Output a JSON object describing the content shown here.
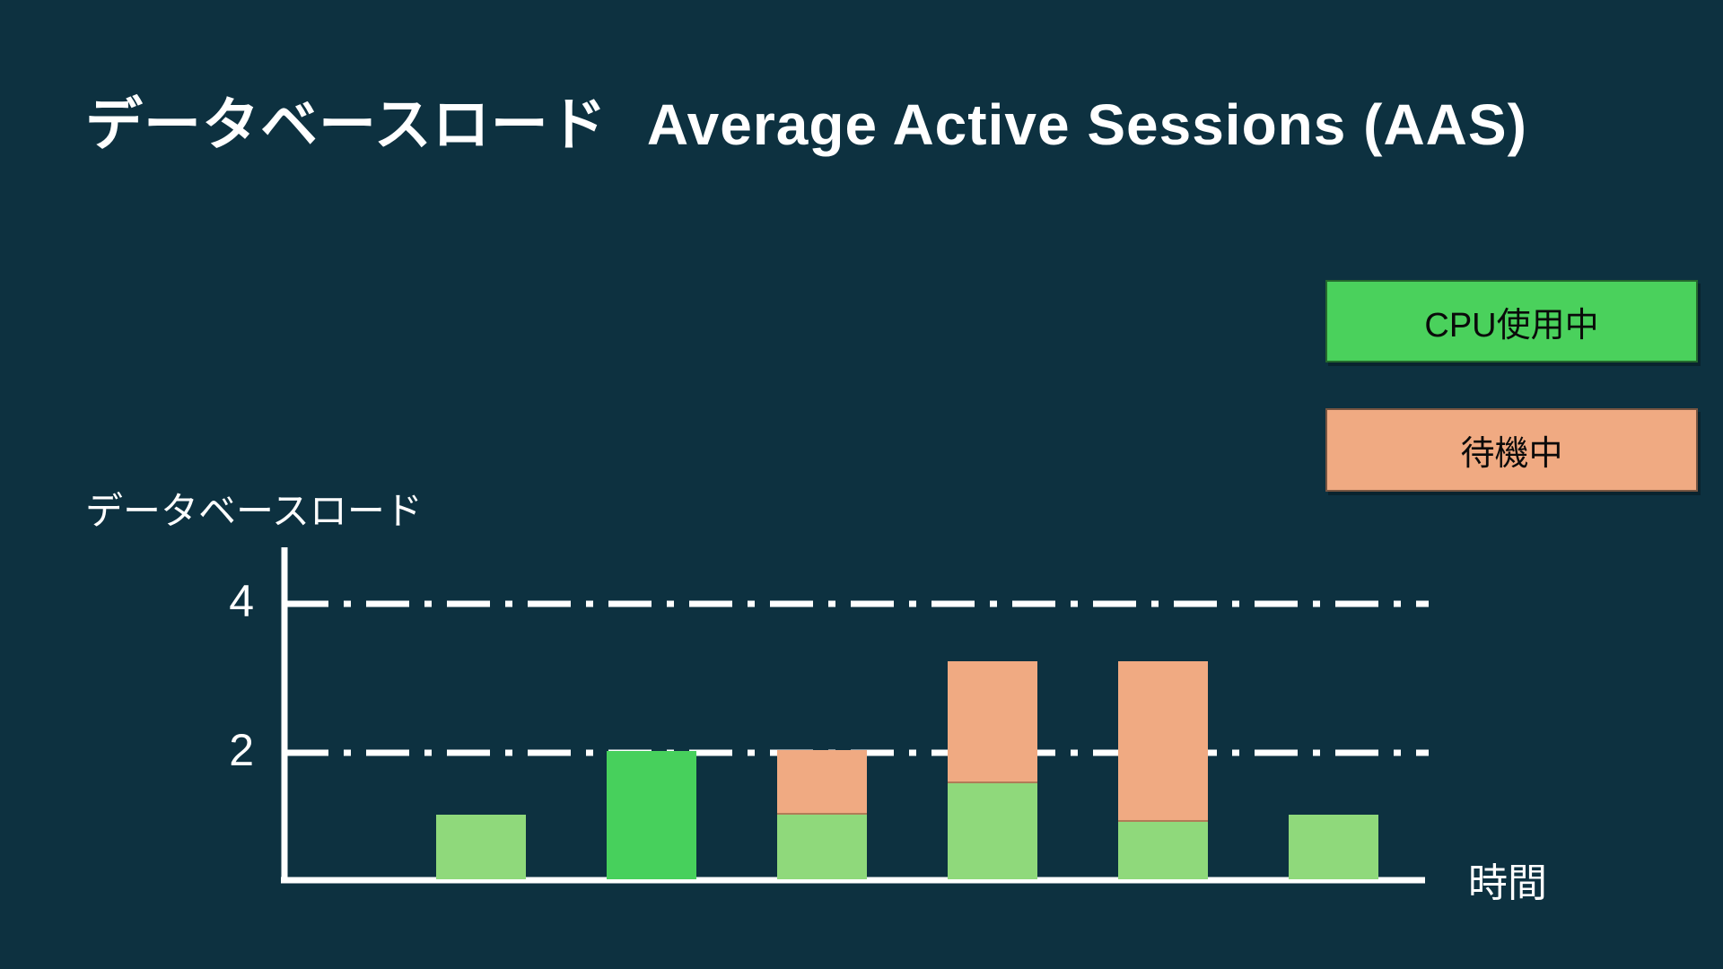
{
  "slide": {
    "background": "#0D3140",
    "title_jp": "データベースロード",
    "title_en": "Average Active Sessions (AAS)",
    "text_color": "#FFFFFF"
  },
  "legend": {
    "position": "top-right",
    "items": [
      {
        "id": "cpu",
        "label": "CPU使用中",
        "color": "#4AD15C",
        "text_color": "#0A0A0A"
      },
      {
        "id": "wait",
        "label": "待機中",
        "color": "#F0AA82",
        "text_color": "#0A0A0A"
      }
    ]
  },
  "chart_data": {
    "type": "bar",
    "stacked": true,
    "title": "データベースロード",
    "ylabel": "データベースロード",
    "xlabel": "時間",
    "yticks": [
      4,
      2
    ],
    "ylim": [
      0,
      5
    ],
    "x_categories_visible": false,
    "grid": {
      "style": "dash-dot",
      "color": "#FFFFFF"
    },
    "axis_color": "#FFFFFF",
    "legend_position": "top-right",
    "series": [
      {
        "name": "CPU使用中",
        "values": [
          1,
          2,
          1,
          1.5,
          0.9,
          1
        ],
        "colors": [
          "#8FD97B",
          "#47D05C",
          "#8FD97B",
          "#8FD97B",
          "#8FD97B",
          "#8FD97B"
        ]
      },
      {
        "name": "待機中",
        "values": [
          0,
          0,
          1,
          1.9,
          2.5,
          0
        ],
        "colors": [
          "#F0AA82",
          "#F0AA82",
          "#F0AA82",
          "#F0AA82",
          "#F0AA82",
          "#F0AA82"
        ]
      }
    ]
  }
}
